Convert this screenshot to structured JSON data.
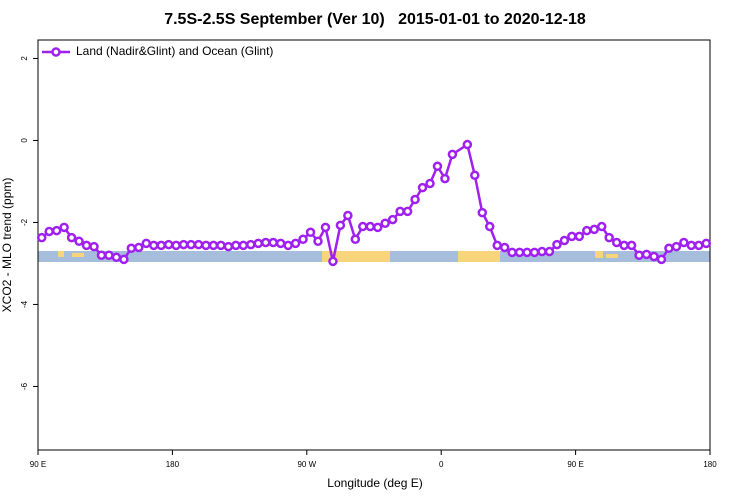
{
  "chart_data": {
    "type": "line",
    "title": "7.5S-2.5S September (Ver 10)   2015-01-01 to 2020-12-18",
    "x_label": "Longitude (deg E)",
    "y_label": "XCO2 - MLO trend (ppm)",
    "xlim": [
      90,
      540
    ],
    "ylim": [
      -7.55,
      2.45
    ],
    "xticks": [
      {
        "value": 90,
        "label": "90 E"
      },
      180,
      {
        "value": 270,
        "label": "90 W"
      },
      {
        "value": 360,
        "label": "0"
      },
      {
        "value": 450,
        "label": "90 E"
      },
      {
        "value": 540,
        "label": "180"
      }
    ],
    "yticks": [
      -6,
      -4,
      -2,
      0,
      2
    ],
    "legend": "top-left",
    "series": [
      {
        "name": "Land (Nadir&Glint) and Ocean (Glint)",
        "color": "#a020f0",
        "x": [
          92.5,
          97.5,
          102.5,
          107.5,
          112.5,
          117.5,
          122.5,
          127.5,
          132.5,
          137.5,
          142.5,
          147.5,
          152.5,
          157.5,
          162.5,
          167.5,
          172.5,
          177.5,
          182.5,
          187.5,
          192.5,
          197.5,
          202.5,
          207.5,
          212.5,
          217.5,
          222.5,
          227.5,
          232.5,
          237.5,
          242.5,
          247.5,
          252.5,
          257.5,
          262.5,
          267.5,
          272.5,
          277.5,
          282.5,
          287.5,
          292.5,
          297.5,
          302.5,
          307.5,
          312.5,
          317.5,
          322.5,
          327.5,
          332.5,
          337.5,
          342.5,
          347.5,
          352.5,
          357.5,
          362.5,
          367.5,
          377.5,
          382.5,
          387.5,
          392.5,
          397.5,
          402.5,
          407.5,
          412.5,
          417.5,
          422.5,
          427.5,
          432.5,
          437.5,
          442.5,
          447.5,
          452.5,
          457.5,
          462.5,
          467.5,
          472.5,
          477.5,
          482.5,
          487.5,
          492.5,
          497.5,
          502.5,
          507.5,
          512.5,
          517.5,
          522.5,
          527.5,
          532.5,
          537.5
        ],
        "values": [
          -2.37,
          -2.22,
          -2.2,
          -2.12,
          -2.37,
          -2.46,
          -2.56,
          -2.59,
          -2.8,
          -2.8,
          -2.85,
          -2.9,
          -2.63,
          -2.61,
          -2.51,
          -2.56,
          -2.56,
          -2.54,
          -2.56,
          -2.54,
          -2.54,
          -2.54,
          -2.56,
          -2.56,
          -2.56,
          -2.59,
          -2.56,
          -2.56,
          -2.54,
          -2.51,
          -2.49,
          -2.49,
          -2.51,
          -2.56,
          -2.51,
          -2.41,
          -2.24,
          -2.46,
          -2.12,
          -2.95,
          -2.07,
          -1.83,
          -2.41,
          -2.1,
          -2.1,
          -2.12,
          -2.02,
          -1.93,
          -1.73,
          -1.73,
          -1.44,
          -1.15,
          -1.05,
          -0.63,
          -0.93,
          -0.34,
          -0.1,
          -0.85,
          -1.76,
          -2.1,
          -2.56,
          -2.61,
          -2.73,
          -2.73,
          -2.73,
          -2.73,
          -2.71,
          -2.71,
          -2.54,
          -2.44,
          -2.34,
          -2.34,
          -2.2,
          -2.17,
          -2.1,
          -2.37,
          -2.49,
          -2.56,
          -2.56,
          -2.8,
          -2.78,
          -2.83,
          -2.9,
          -2.63,
          -2.59,
          -2.49,
          -2.56,
          -2.56,
          -2.51
        ]
      }
    ]
  }
}
